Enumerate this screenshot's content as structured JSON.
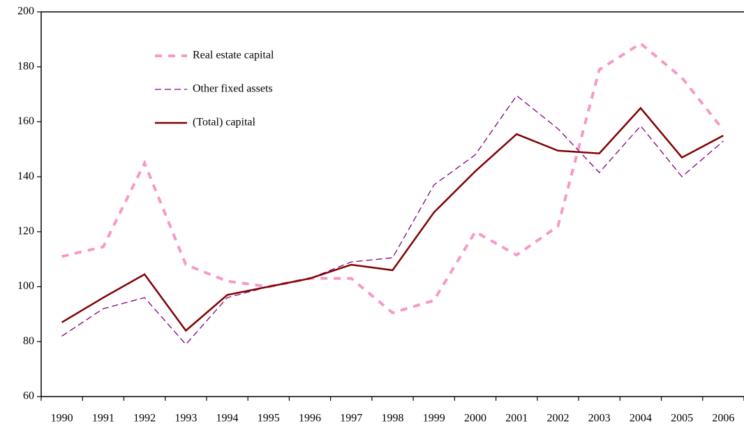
{
  "chart_data": {
    "type": "line",
    "categories": [
      "1990",
      "1991",
      "1992",
      "1993",
      "1994",
      "1995",
      "1996",
      "1997",
      "1998",
      "1999",
      "2000",
      "2001",
      "2002",
      "2003",
      "2004",
      "2005",
      "2006"
    ],
    "series": [
      {
        "name": "Real estate capital",
        "color": "#f799c8",
        "values": [
          111,
          114.5,
          145,
          108,
          102,
          100,
          103,
          103,
          90.5,
          95,
          120,
          111.5,
          122,
          179,
          188.5,
          176,
          157
        ]
      },
      {
        "name": "Other fixed assets",
        "color": "#800080",
        "values": [
          82,
          92,
          96,
          79,
          96,
          100,
          103,
          109,
          110.5,
          137,
          148,
          169.5,
          157.5,
          141.5,
          158.5,
          140,
          153
        ]
      },
      {
        "name": "(Total) capital",
        "color": "#800000",
        "values": [
          87,
          96,
          104.5,
          84,
          97,
          100,
          103,
          108,
          106,
          127,
          142,
          155.5,
          149.5,
          148.5,
          165,
          147,
          155
        ]
      }
    ],
    "ylim": [
      60,
      200
    ],
    "yticks": [
      60,
      80,
      100,
      120,
      140,
      160,
      180,
      200
    ],
    "grid": false
  }
}
